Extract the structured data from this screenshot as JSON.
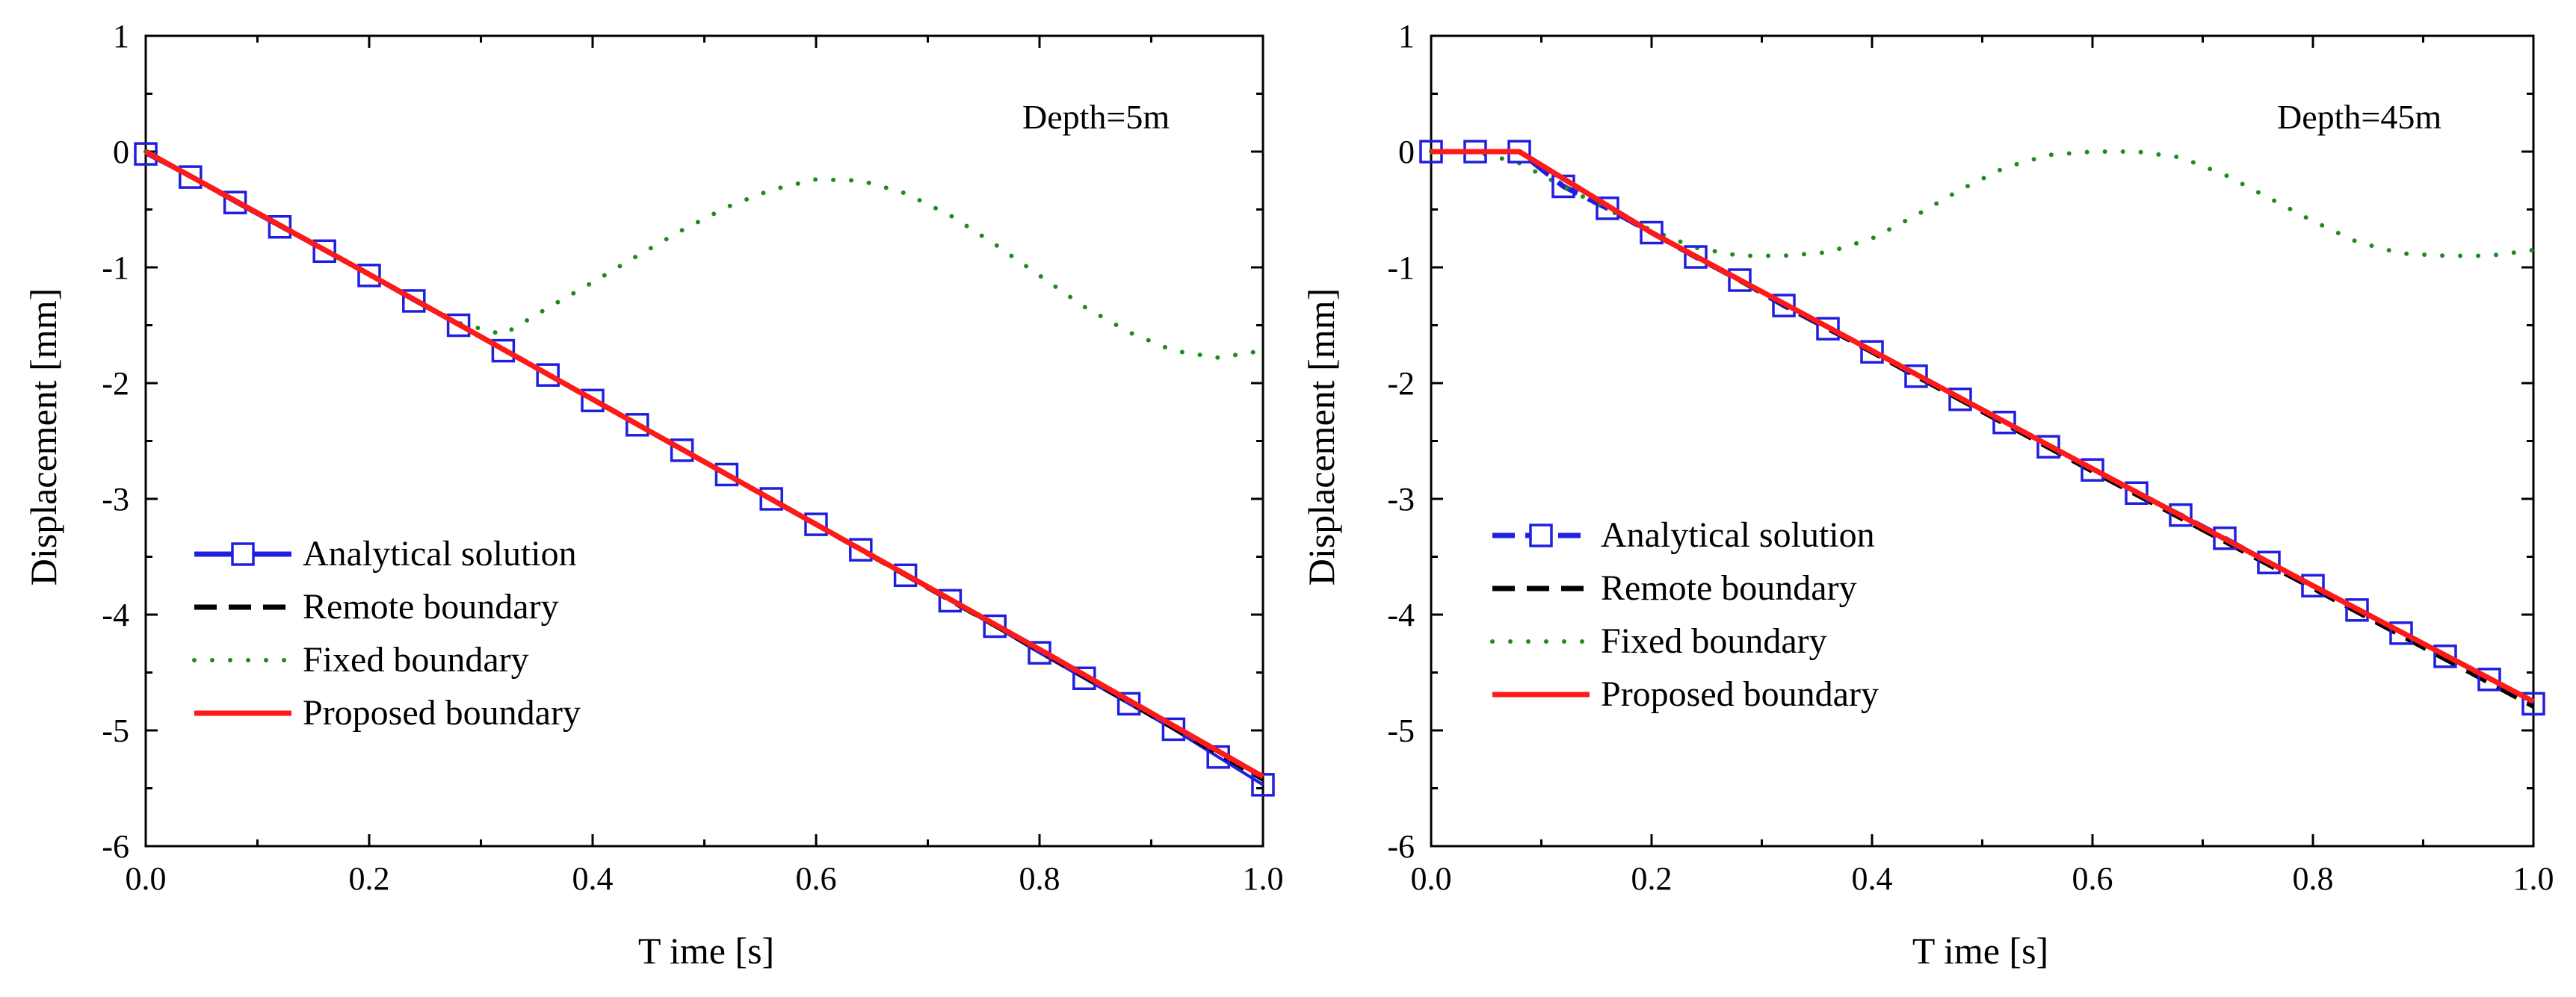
{
  "chart_data": [
    {
      "type": "line",
      "annotation": "Depth=5m",
      "xlabel": "T ime [s]",
      "ylabel": "Displacement [mm]",
      "xlim": [
        0,
        1
      ],
      "ylim": [
        -6,
        1
      ],
      "x_ticks": [
        "0.0",
        "0.2",
        "0.4",
        "0.6",
        "0.8",
        "1.0"
      ],
      "y_ticks": [
        "1",
        "0",
        "-1",
        "-2",
        "-3",
        "-4",
        "-5",
        "-6"
      ],
      "legend_position": "lower-left",
      "series": [
        {
          "name": "Analytical solution",
          "style": "line-square",
          "color": "#1f1fe0",
          "x": [
            0.0,
            0.04,
            0.08,
            0.12,
            0.16,
            0.2,
            0.24,
            0.28,
            0.32,
            0.36,
            0.4,
            0.44,
            0.48,
            0.52,
            0.56,
            0.6,
            0.64,
            0.68,
            0.72,
            0.76,
            0.8,
            0.84,
            0.88,
            0.92,
            0.96,
            1.0
          ],
          "y": [
            -0.02,
            -0.22,
            -0.44,
            -0.65,
            -0.86,
            -1.07,
            -1.29,
            -1.5,
            -1.72,
            -1.93,
            -2.15,
            -2.36,
            -2.58,
            -2.79,
            -3.0,
            -3.22,
            -3.44,
            -3.66,
            -3.88,
            -4.1,
            -4.33,
            -4.55,
            -4.77,
            -4.99,
            -5.23,
            -5.47
          ]
        },
        {
          "name": "Remote boundary",
          "style": "dash",
          "color": "#000000",
          "x": [
            0.0,
            0.2,
            0.4,
            0.6,
            0.8,
            1.0
          ],
          "y": [
            0.0,
            -1.06,
            -2.14,
            -3.22,
            -4.31,
            -5.42
          ]
        },
        {
          "name": "Fixed boundary",
          "style": "dot",
          "color": "#1f8a1f",
          "x": [
            0.0,
            0.04,
            0.08,
            0.12,
            0.16,
            0.2,
            0.24,
            0.28,
            0.32,
            0.36,
            0.4,
            0.44,
            0.48,
            0.52,
            0.56,
            0.6,
            0.64,
            0.68,
            0.72,
            0.76,
            0.8,
            0.84,
            0.88,
            0.92,
            0.96,
            1.0
          ],
          "y": [
            0.0,
            -0.21,
            -0.42,
            -0.63,
            -0.85,
            -1.06,
            -1.27,
            -1.48,
            -1.58,
            -1.35,
            -1.13,
            -0.9,
            -0.68,
            -0.48,
            -0.33,
            -0.24,
            -0.25,
            -0.36,
            -0.55,
            -0.8,
            -1.07,
            -1.34,
            -1.56,
            -1.72,
            -1.78,
            -1.72
          ]
        },
        {
          "name": "Proposed boundary",
          "style": "line",
          "color": "#ff1a1a",
          "x": [
            0.0,
            0.2,
            0.4,
            0.6,
            0.8,
            1.0
          ],
          "y": [
            0.0,
            -1.06,
            -2.14,
            -3.22,
            -4.3,
            -5.4
          ]
        }
      ]
    },
    {
      "type": "line",
      "annotation": "Depth=45m",
      "xlabel": "T ime [s]",
      "ylabel": "Displacement [mm]",
      "xlim": [
        0,
        1
      ],
      "ylim": [
        -6,
        1
      ],
      "x_ticks": [
        "0.0",
        "0.2",
        "0.4",
        "0.6",
        "0.8",
        "1.0"
      ],
      "y_ticks": [
        "1",
        "0",
        "-1",
        "-2",
        "-3",
        "-4",
        "-5",
        "-6"
      ],
      "legend_position": "lower-left",
      "series": [
        {
          "name": "Analytical solution",
          "style": "dash-square",
          "color": "#1f1fe0",
          "x": [
            0.0,
            0.04,
            0.08,
            0.12,
            0.16,
            0.2,
            0.24,
            0.28,
            0.32,
            0.36,
            0.4,
            0.44,
            0.48,
            0.52,
            0.56,
            0.6,
            0.64,
            0.68,
            0.72,
            0.76,
            0.8,
            0.84,
            0.88,
            0.92,
            0.96,
            1.0
          ],
          "y": [
            0.0,
            0.0,
            0.0,
            -0.3,
            -0.49,
            -0.7,
            -0.91,
            -1.11,
            -1.33,
            -1.53,
            -1.73,
            -1.94,
            -2.14,
            -2.34,
            -2.55,
            -2.75,
            -2.95,
            -3.14,
            -3.34,
            -3.55,
            -3.75,
            -3.96,
            -4.16,
            -4.36,
            -4.56,
            -4.77
          ]
        },
        {
          "name": "Remote boundary",
          "style": "dash",
          "color": "#000000",
          "x": [
            0.0,
            0.08,
            0.2,
            0.4,
            0.6,
            0.8,
            1.0
          ],
          "y": [
            0.0,
            0.0,
            -0.7,
            -1.73,
            -2.76,
            -3.77,
            -4.79
          ]
        },
        {
          "name": "Fixed boundary",
          "style": "dot",
          "color": "#1f8a1f",
          "x": [
            0.0,
            0.04,
            0.08,
            0.12,
            0.16,
            0.2,
            0.24,
            0.28,
            0.32,
            0.36,
            0.4,
            0.44,
            0.48,
            0.52,
            0.56,
            0.6,
            0.64,
            0.68,
            0.72,
            0.76,
            0.8,
            0.84,
            0.88,
            0.92,
            0.96,
            1.0
          ],
          "y": [
            0.0,
            0.0,
            -0.1,
            -0.3,
            -0.5,
            -0.68,
            -0.83,
            -0.9,
            -0.9,
            -0.87,
            -0.75,
            -0.55,
            -0.33,
            -0.14,
            -0.03,
            0.0,
            0.0,
            -0.05,
            -0.2,
            -0.4,
            -0.6,
            -0.78,
            -0.88,
            -0.9,
            -0.9,
            -0.85
          ]
        },
        {
          "name": "Proposed boundary",
          "style": "line",
          "color": "#ff1a1a",
          "x": [
            0.0,
            0.08,
            0.2,
            0.4,
            0.6,
            0.8,
            1.0
          ],
          "y": [
            0.0,
            0.0,
            -0.7,
            -1.72,
            -2.74,
            -3.75,
            -4.75
          ]
        }
      ]
    }
  ]
}
